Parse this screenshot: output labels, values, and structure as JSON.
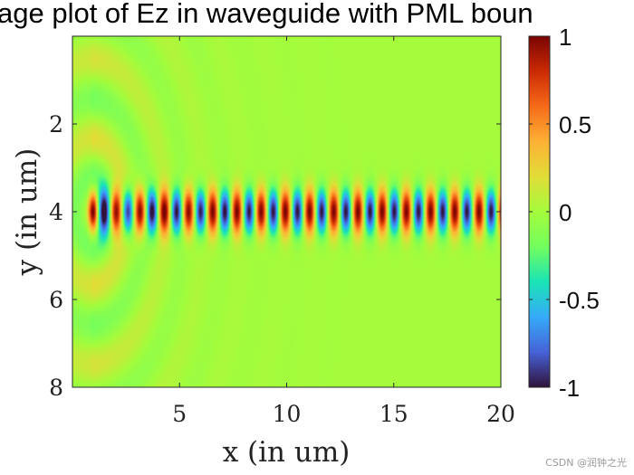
{
  "chart_data": {
    "type": "heatmap",
    "title": "Image plot of Ez in waveguide with PML boundary",
    "title_visible": "age plot of Ez in waveguide with PML boun",
    "xlabel": "x (in um)",
    "ylabel": "y (in um)",
    "xlim": [
      0,
      20
    ],
    "ylim": [
      8,
      0
    ],
    "x_ticks": [
      5,
      10,
      15,
      20
    ],
    "y_ticks": [
      2,
      4,
      6,
      8
    ],
    "colorbar": {
      "colormap": "turbo",
      "clim": [
        -1,
        1
      ],
      "ticks": [
        1,
        0.5,
        0,
        -0.5,
        -1
      ],
      "tick_labels": [
        "1",
        "0.5",
        "0",
        "-0.5",
        "-1"
      ]
    },
    "field": {
      "source_x": 0.9,
      "waveguide_center_y": 4.0,
      "waveguide_half_width": 0.35,
      "guided_wavelength": 1.13,
      "guided_amplitude": 1.0,
      "radiated_wavelength": 1.8,
      "radiated_amplitude": 0.3
    }
  },
  "watermark": "CSDN @润钟之光"
}
